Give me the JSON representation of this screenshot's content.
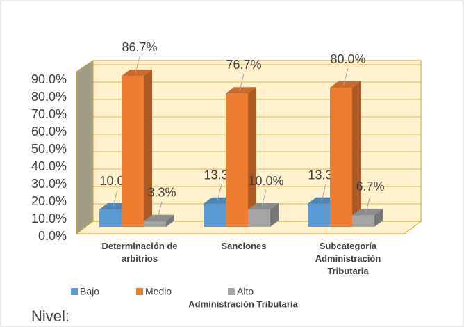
{
  "chart_data": {
    "type": "bar3d",
    "categories": [
      "Determinación de arbitrios",
      "Sanciones",
      "Subcategoría Administración Tributaria"
    ],
    "series": [
      {
        "name": "Bajo",
        "color": "#5b9bd5",
        "values": [
          10.0,
          13.3,
          13.3
        ],
        "value_labels": [
          "10.0%",
          "13.3%",
          "13.3%"
        ]
      },
      {
        "name": "Medio",
        "color": "#ed7d31",
        "values": [
          86.7,
          76.7,
          80.0
        ],
        "value_labels": [
          "86.7%",
          "76.7%",
          "80.0%"
        ]
      },
      {
        "name": "Alto",
        "color": "#a5a5a5",
        "values": [
          3.3,
          10.0,
          6.7
        ],
        "value_labels": [
          "3.3%",
          "10.0%",
          "6.7%"
        ]
      }
    ],
    "ylim": [
      0,
      90
    ],
    "yticks": [
      {
        "value": 0,
        "label": "0.0%"
      },
      {
        "value": 10,
        "label": "10.0%"
      },
      {
        "value": 20,
        "label": "20.0%"
      },
      {
        "value": 30,
        "label": "30.0%"
      },
      {
        "value": 40,
        "label": "40.0%"
      },
      {
        "value": 50,
        "label": "50.0%"
      },
      {
        "value": 60,
        "label": "60.0%"
      },
      {
        "value": 70,
        "label": "70.0%"
      },
      {
        "value": 80,
        "label": "80.0%"
      },
      {
        "value": 90,
        "label": "90.0%"
      }
    ],
    "grid": true,
    "xlabel": "Administración Tributaria",
    "legend_title": "Nivel:",
    "legend": "bottom"
  }
}
